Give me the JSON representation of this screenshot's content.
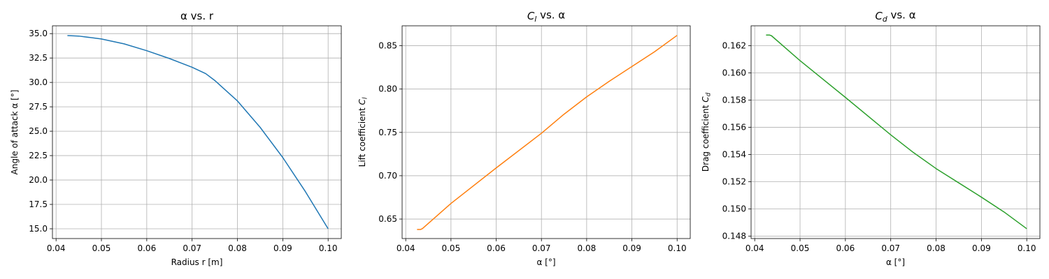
{
  "chart_data": [
    {
      "type": "line",
      "title": "α vs. r",
      "xlabel": "Radius r [m]",
      "ylabel": "Angle of attack α [°]",
      "xlim": [
        0.0392,
        0.1029
      ],
      "ylim": [
        14.0,
        35.8
      ],
      "xticks": [
        0.04,
        0.05,
        0.06,
        0.07,
        0.08,
        0.09,
        0.1
      ],
      "xtick_labels": [
        "0.04",
        "0.05",
        "0.06",
        "0.07",
        "0.08",
        "0.09",
        "0.10"
      ],
      "yticks": [
        15.0,
        17.5,
        20.0,
        22.5,
        25.0,
        27.5,
        30.0,
        32.5,
        35.0
      ],
      "ytick_labels": [
        "15.0",
        "17.5",
        "20.0",
        "22.5",
        "25.0",
        "27.5",
        "30.0",
        "32.5",
        "35.0"
      ],
      "grid": true,
      "color": "#1f77b4",
      "x": [
        0.0425,
        0.045,
        0.05,
        0.055,
        0.06,
        0.065,
        0.07,
        0.073,
        0.075,
        0.08,
        0.085,
        0.09,
        0.095,
        0.1
      ],
      "y": [
        34.8,
        34.75,
        34.45,
        33.95,
        33.25,
        32.45,
        31.55,
        30.9,
        30.2,
        28.1,
        25.4,
        22.3,
        18.8,
        15.0
      ]
    },
    {
      "type": "line",
      "title": "C_l vs. α",
      "title_parts": [
        "C",
        "l",
        " vs. α"
      ],
      "xlabel": "α [°]",
      "ylabel": "Lift coefficient C_l",
      "ylabel_parts": [
        "Lift coefficient C",
        "l"
      ],
      "xlim": [
        0.0392,
        0.1029
      ],
      "ylim": [
        0.6275,
        0.873
      ],
      "xticks": [
        0.04,
        0.05,
        0.06,
        0.07,
        0.08,
        0.09,
        0.1
      ],
      "xtick_labels": [
        "0.04",
        "0.05",
        "0.06",
        "0.07",
        "0.08",
        "0.09",
        "0.10"
      ],
      "yticks": [
        0.65,
        0.7,
        0.75,
        0.8,
        0.85
      ],
      "ytick_labels": [
        "0.65",
        "0.70",
        "0.75",
        "0.80",
        "0.85"
      ],
      "grid": true,
      "color": "#ff7f0e",
      "x": [
        0.0425,
        0.0433,
        0.0437,
        0.05,
        0.06,
        0.07,
        0.075,
        0.08,
        0.085,
        0.09,
        0.095,
        0.1
      ],
      "y": [
        0.638,
        0.638,
        0.639,
        0.668,
        0.709,
        0.749,
        0.771,
        0.791,
        0.809,
        0.826,
        0.843,
        0.862
      ]
    },
    {
      "type": "line",
      "title": "C_d vs. α",
      "title_parts": [
        "C",
        "d",
        " vs. α"
      ],
      "xlabel": "α [°]",
      "ylabel": "Drag coefficient C_d",
      "ylabel_parts": [
        "Drag coefficient C",
        "d"
      ],
      "xlim": [
        0.0392,
        0.1029
      ],
      "ylim": [
        0.14783,
        0.16346
      ],
      "xticks": [
        0.04,
        0.05,
        0.06,
        0.07,
        0.08,
        0.09,
        0.1
      ],
      "xtick_labels": [
        "0.04",
        "0.05",
        "0.06",
        "0.07",
        "0.08",
        "0.09",
        "0.10"
      ],
      "yticks": [
        0.148,
        0.15,
        0.152,
        0.154,
        0.156,
        0.158,
        0.16,
        0.162
      ],
      "ytick_labels": [
        "0.148",
        "0.150",
        "0.152",
        "0.154",
        "0.156",
        "0.158",
        "0.160",
        "0.162"
      ],
      "grid": true,
      "color": "#2ca02c",
      "x": [
        0.0425,
        0.0433,
        0.0437,
        0.05,
        0.06,
        0.07,
        0.075,
        0.08,
        0.085,
        0.09,
        0.095,
        0.1
      ],
      "y": [
        0.16278,
        0.16278,
        0.16273,
        0.1609,
        0.1582,
        0.15545,
        0.15415,
        0.15297,
        0.15192,
        0.15087,
        0.14978,
        0.14855
      ]
    }
  ]
}
